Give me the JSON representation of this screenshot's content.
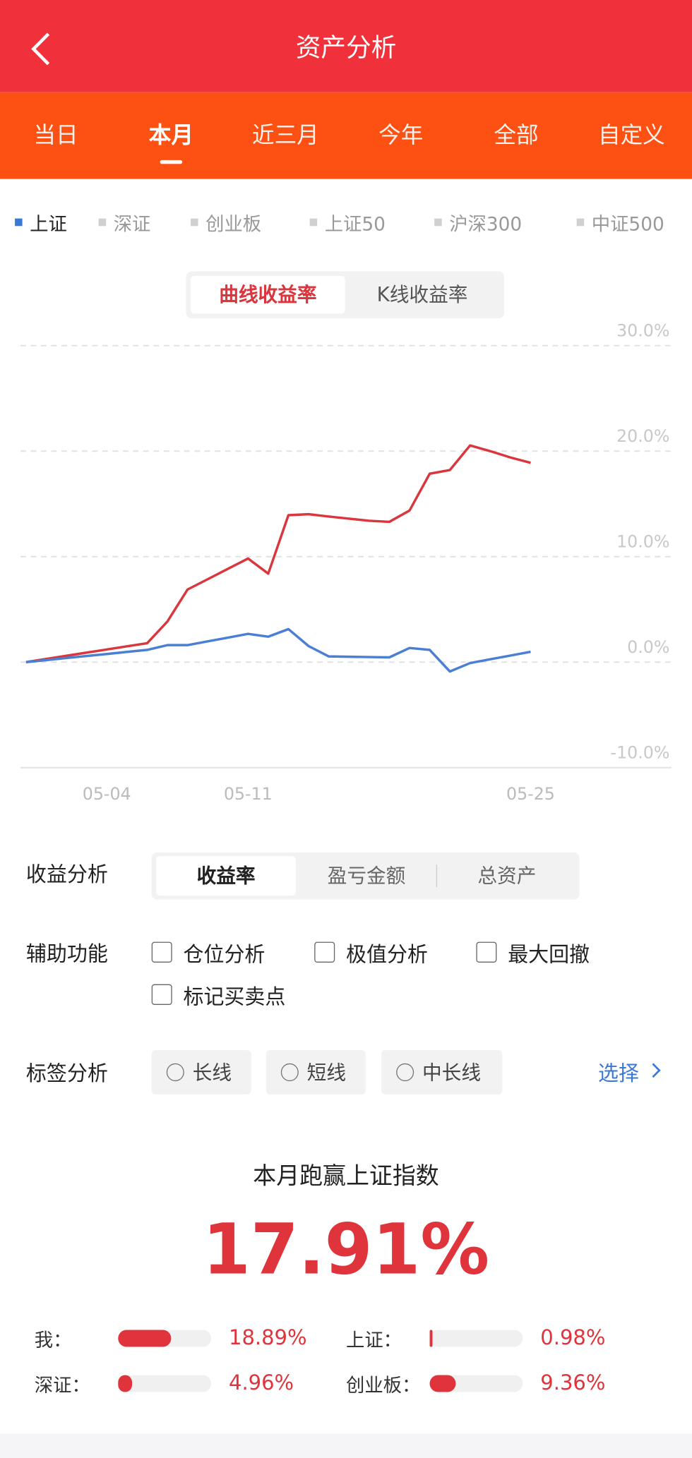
{
  "header": {
    "title": "资产分析"
  },
  "period_tabs": {
    "items": [
      "当日",
      "本月",
      "近三月",
      "今年",
      "全部",
      "自定义"
    ],
    "active": 1
  },
  "index_tabs": {
    "items": [
      "上证",
      "深证",
      "创业板",
      "上证50",
      "沪深300",
      "中证500"
    ],
    "active": 0
  },
  "chart_toggle": {
    "items": [
      "曲线收益率",
      "K线收益率"
    ],
    "active": 0
  },
  "chart_data": {
    "type": "line",
    "categories": [
      null,
      null,
      null,
      null,
      "05-04",
      null,
      null,
      null,
      null,
      null,
      null,
      "05-11",
      null,
      null,
      null,
      null,
      null,
      null,
      null,
      null,
      null,
      null,
      null,
      null,
      null,
      "05-25"
    ],
    "series": [
      {
        "color": "#d9363e",
        "values": [
          0,
          0.3,
          0.6,
          0.9,
          1.2,
          1.5,
          1.79,
          3.84,
          6.88,
          7.86,
          8.84,
          9.82,
          8.39,
          13.93,
          14.02,
          13.8,
          13.6,
          13.4,
          13.3,
          14.37,
          17.86,
          18.21,
          20.54,
          20.0,
          19.4,
          18.89
        ]
      },
      {
        "color": "#4a7fd4",
        "values": [
          0,
          0.19,
          0.39,
          0.58,
          0.77,
          0.97,
          1.16,
          1.61,
          1.61,
          1.97,
          2.32,
          2.68,
          2.41,
          3.13,
          1.52,
          0.54,
          0.51,
          0.48,
          0.45,
          1.34,
          1.16,
          -0.89,
          -0.09,
          0.27,
          0.62,
          0.98
        ]
      }
    ],
    "ylim": [
      -10,
      30
    ],
    "yticks": [
      {
        "value": -10,
        "label": "-10.0%"
      },
      {
        "value": 0,
        "label": "0.0%"
      },
      {
        "value": 10,
        "label": "10.0%"
      },
      {
        "value": 20,
        "label": "20.0%"
      },
      {
        "value": 30,
        "label": "30.0%"
      }
    ],
    "grid": true
  },
  "profit_analysis": {
    "label": "收益分析",
    "options": [
      "收益率",
      "盈亏金额",
      "总资产"
    ],
    "active": 0
  },
  "aux_functions": {
    "label": "辅助功能",
    "options": [
      "仓位分析",
      "极值分析",
      "最大回撤",
      "标记买卖点"
    ]
  },
  "tag_analysis": {
    "label": "标签分析",
    "options": [
      "长线",
      "短线",
      "中长线"
    ],
    "select": "选择"
  },
  "summary": {
    "title": "本月跑赢上证指数",
    "value": 17.91,
    "value_label": "17.91%",
    "compare": [
      {
        "label": "我：",
        "value": 18.89,
        "value_label": "18.89%"
      },
      {
        "label": "上证：",
        "value": 0.98,
        "value_label": "0.98%"
      },
      {
        "label": "深证：",
        "value": 4.96,
        "value_label": "4.96%"
      },
      {
        "label": "创业板：",
        "value": 9.36,
        "value_label": "9.36%"
      }
    ]
  }
}
